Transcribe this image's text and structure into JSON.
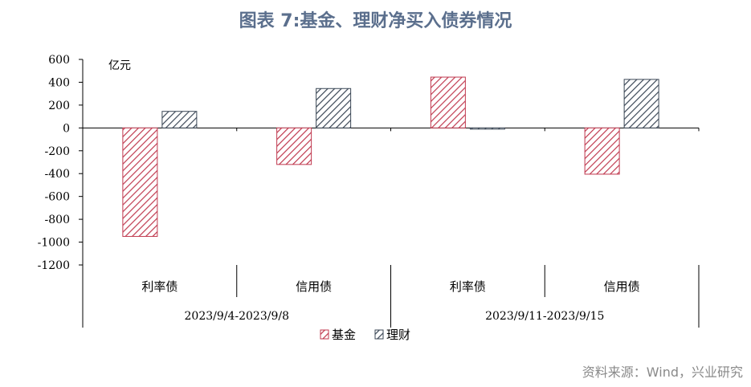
{
  "title": "图表 7:基金、理财净买入债券情况",
  "source": "资料来源：Wind，兴业研究",
  "chart_data": {
    "type": "bar",
    "unit": "亿元",
    "ylim": [
      -1200,
      600
    ],
    "yticks": [
      600,
      400,
      200,
      0,
      -200,
      -400,
      -600,
      -800,
      -1000,
      -1200
    ],
    "groups": [
      {
        "label": "2023/9/4-2023/9/8",
        "categories": [
          "利率债",
          "信用债"
        ]
      },
      {
        "label": "2023/9/11-2023/9/15",
        "categories": [
          "利率债",
          "信用债"
        ]
      }
    ],
    "categories": [
      "利率债",
      "信用债",
      "利率债",
      "信用债"
    ],
    "series": [
      {
        "name": "基金",
        "color": "#c0394f",
        "values": [
          -950,
          -320,
          445,
          -405
        ]
      },
      {
        "name": "理财",
        "color": "#3b4756",
        "values": [
          145,
          345,
          -10,
          425
        ]
      }
    ],
    "legend_position": "bottom",
    "grid": false
  }
}
